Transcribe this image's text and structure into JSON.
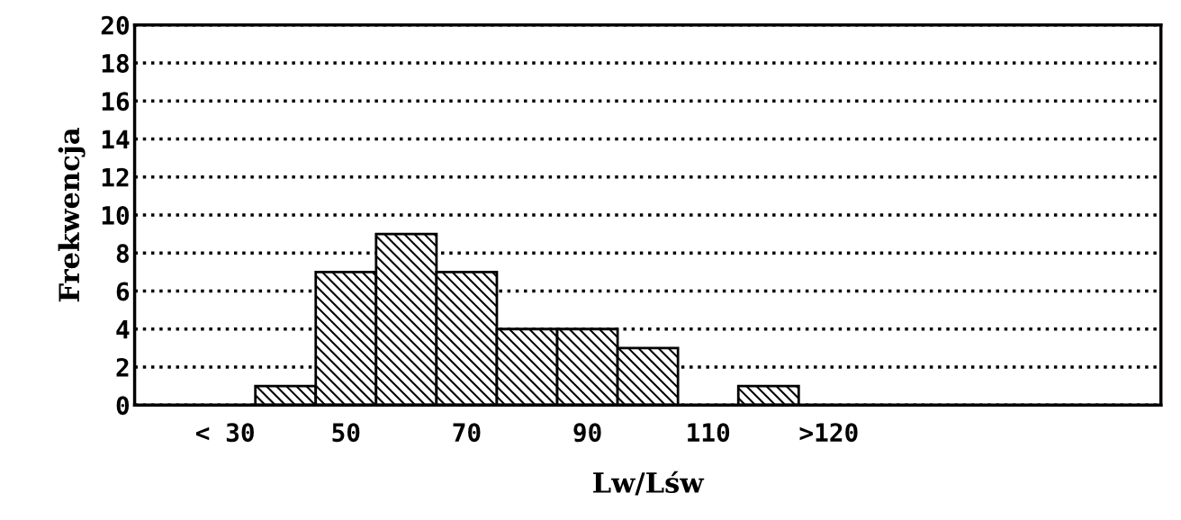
{
  "chart_data": {
    "type": "bar",
    "xlabel": "Lw/Lśw",
    "ylabel": "Frekwencja",
    "categories": [
      null,
      "< 30",
      null,
      "50",
      null,
      "70",
      null,
      "90",
      null,
      "110",
      null,
      ">120",
      null,
      null,
      null,
      null,
      null
    ],
    "series": [
      {
        "color": "#000000",
        "values": [
          null,
          null,
          1,
          7,
          9,
          7,
          4,
          4,
          3,
          null,
          1,
          null,
          null,
          null,
          null,
          null,
          null
        ]
      }
    ],
    "ylim": [
      0,
      20
    ],
    "yticks": [
      0,
      2,
      4,
      6,
      8,
      10,
      12,
      14,
      16,
      18,
      20
    ],
    "grid": "y",
    "line_style": "dotted",
    "legend": false
  }
}
